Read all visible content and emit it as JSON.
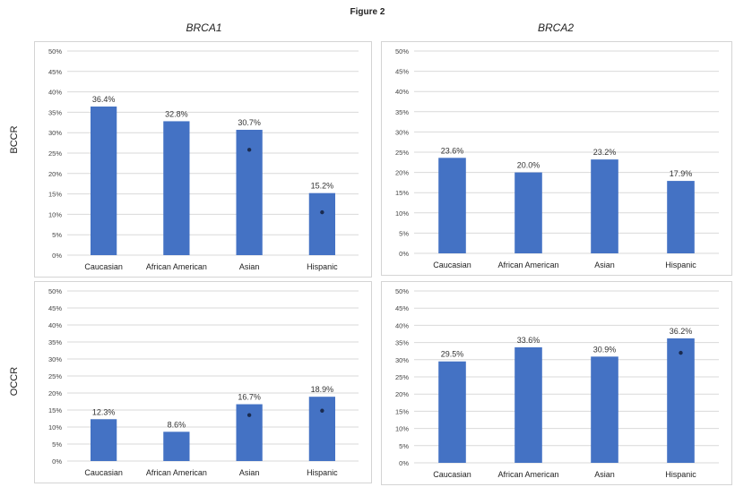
{
  "figure_title": "Figure 2",
  "column_titles": [
    "BRCA1",
    "BRCA2"
  ],
  "row_labels": [
    "BCCR",
    "OCCR"
  ],
  "colors": {
    "bar": "#4472c4",
    "grid": "#d9d9d9",
    "marker": "#1a2b4f"
  },
  "chart_data": [
    {
      "type": "bar",
      "title": "",
      "categories": [
        "Caucasian",
        "African American",
        "Asian",
        "Hispanic"
      ],
      "values": [
        36.4,
        32.8,
        30.7,
        15.2
      ],
      "data_labels": [
        "36.4%",
        "32.8%",
        "30.7%",
        "15.2%"
      ],
      "significance_markers": [
        null,
        null,
        25.8,
        10.5
      ],
      "ylabel": "BCCR",
      "ylim": [
        0,
        50
      ],
      "yticks": [
        "0%",
        "5%",
        "10%",
        "15%",
        "20%",
        "25%",
        "30%",
        "35%",
        "40%",
        "45%",
        "50%"
      ],
      "grid": true
    },
    {
      "type": "bar",
      "title": "",
      "categories": [
        "Caucasian",
        "African American",
        "Asian",
        "Hispanic"
      ],
      "values": [
        23.6,
        20.0,
        23.2,
        17.9
      ],
      "data_labels": [
        "23.6%",
        "20.0%",
        "23.2%",
        "17.9%"
      ],
      "significance_markers": [
        null,
        null,
        null,
        null
      ],
      "ylabel": "",
      "ylim": [
        0,
        50
      ],
      "yticks": [
        "0%",
        "5%",
        "10%",
        "15%",
        "20%",
        "25%",
        "30%",
        "35%",
        "40%",
        "45%",
        "50%"
      ],
      "grid": true
    },
    {
      "type": "bar",
      "title": "",
      "categories": [
        "Caucasian",
        "African American",
        "Asian",
        "Hispanic"
      ],
      "values": [
        12.3,
        8.6,
        16.7,
        18.9
      ],
      "data_labels": [
        "12.3%",
        "8.6%",
        "16.7%",
        "18.9%"
      ],
      "significance_markers": [
        null,
        null,
        13.5,
        14.8
      ],
      "ylabel": "OCCR",
      "ylim": [
        0,
        50
      ],
      "yticks": [
        "0%",
        "5%",
        "10%",
        "15%",
        "20%",
        "25%",
        "30%",
        "35%",
        "40%",
        "45%",
        "50%"
      ],
      "grid": true
    },
    {
      "type": "bar",
      "title": "",
      "categories": [
        "Caucasian",
        "African American",
        "Asian",
        "Hispanic"
      ],
      "values": [
        29.5,
        33.6,
        30.9,
        36.2
      ],
      "data_labels": [
        "29.5%",
        "33.6%",
        "30.9%",
        "36.2%"
      ],
      "significance_markers": [
        null,
        null,
        null,
        32.0
      ],
      "ylabel": "",
      "ylim": [
        0,
        50
      ],
      "yticks": [
        "0%",
        "5%",
        "10%",
        "15%",
        "20%",
        "25%",
        "30%",
        "35%",
        "40%",
        "45%",
        "50%"
      ],
      "grid": true
    }
  ]
}
